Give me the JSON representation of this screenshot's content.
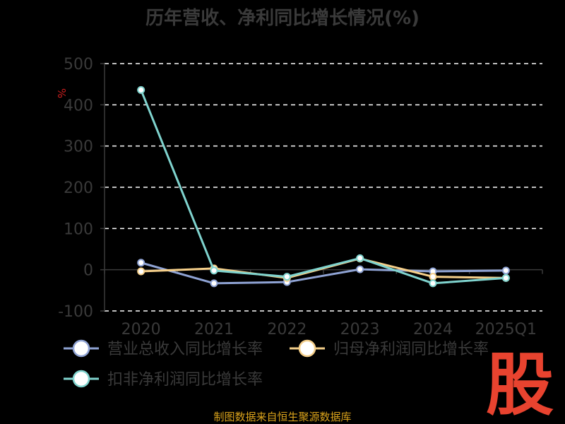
{
  "chart_data": {
    "type": "line",
    "title": "历年营收、净利同比增长情况(%)",
    "ylabel": "%",
    "xlabel": "",
    "categories": [
      "2020",
      "2021",
      "2022",
      "2023",
      "2024",
      "2025Q1"
    ],
    "ylim": [
      -100,
      500
    ],
    "yticks": [
      -100,
      0,
      100,
      200,
      300,
      400,
      500
    ],
    "grid": true,
    "legend_position": "bottom",
    "series": [
      {
        "name": "营业总收入同比增长率",
        "values": [
          17,
          -33,
          -30,
          1,
          -4,
          -2
        ],
        "color": "#8fa3d4"
      },
      {
        "name": "归母净利润同比增长率",
        "values": [
          -4,
          3,
          -20,
          27,
          -17,
          -20
        ],
        "color": "#f5cf8a"
      },
      {
        "name": "扣非净利润同比增长率",
        "values": [
          436,
          -2,
          -17,
          28,
          -33,
          -20
        ],
        "color": "#7fd3ce"
      }
    ]
  },
  "footer": {
    "source": "制图数据来自恒生聚源数据库",
    "brand": "股"
  },
  "colors": {
    "background": "#000000",
    "grid": "#ffffff",
    "text": "#3a3a3a",
    "accent": "#e8432f"
  }
}
